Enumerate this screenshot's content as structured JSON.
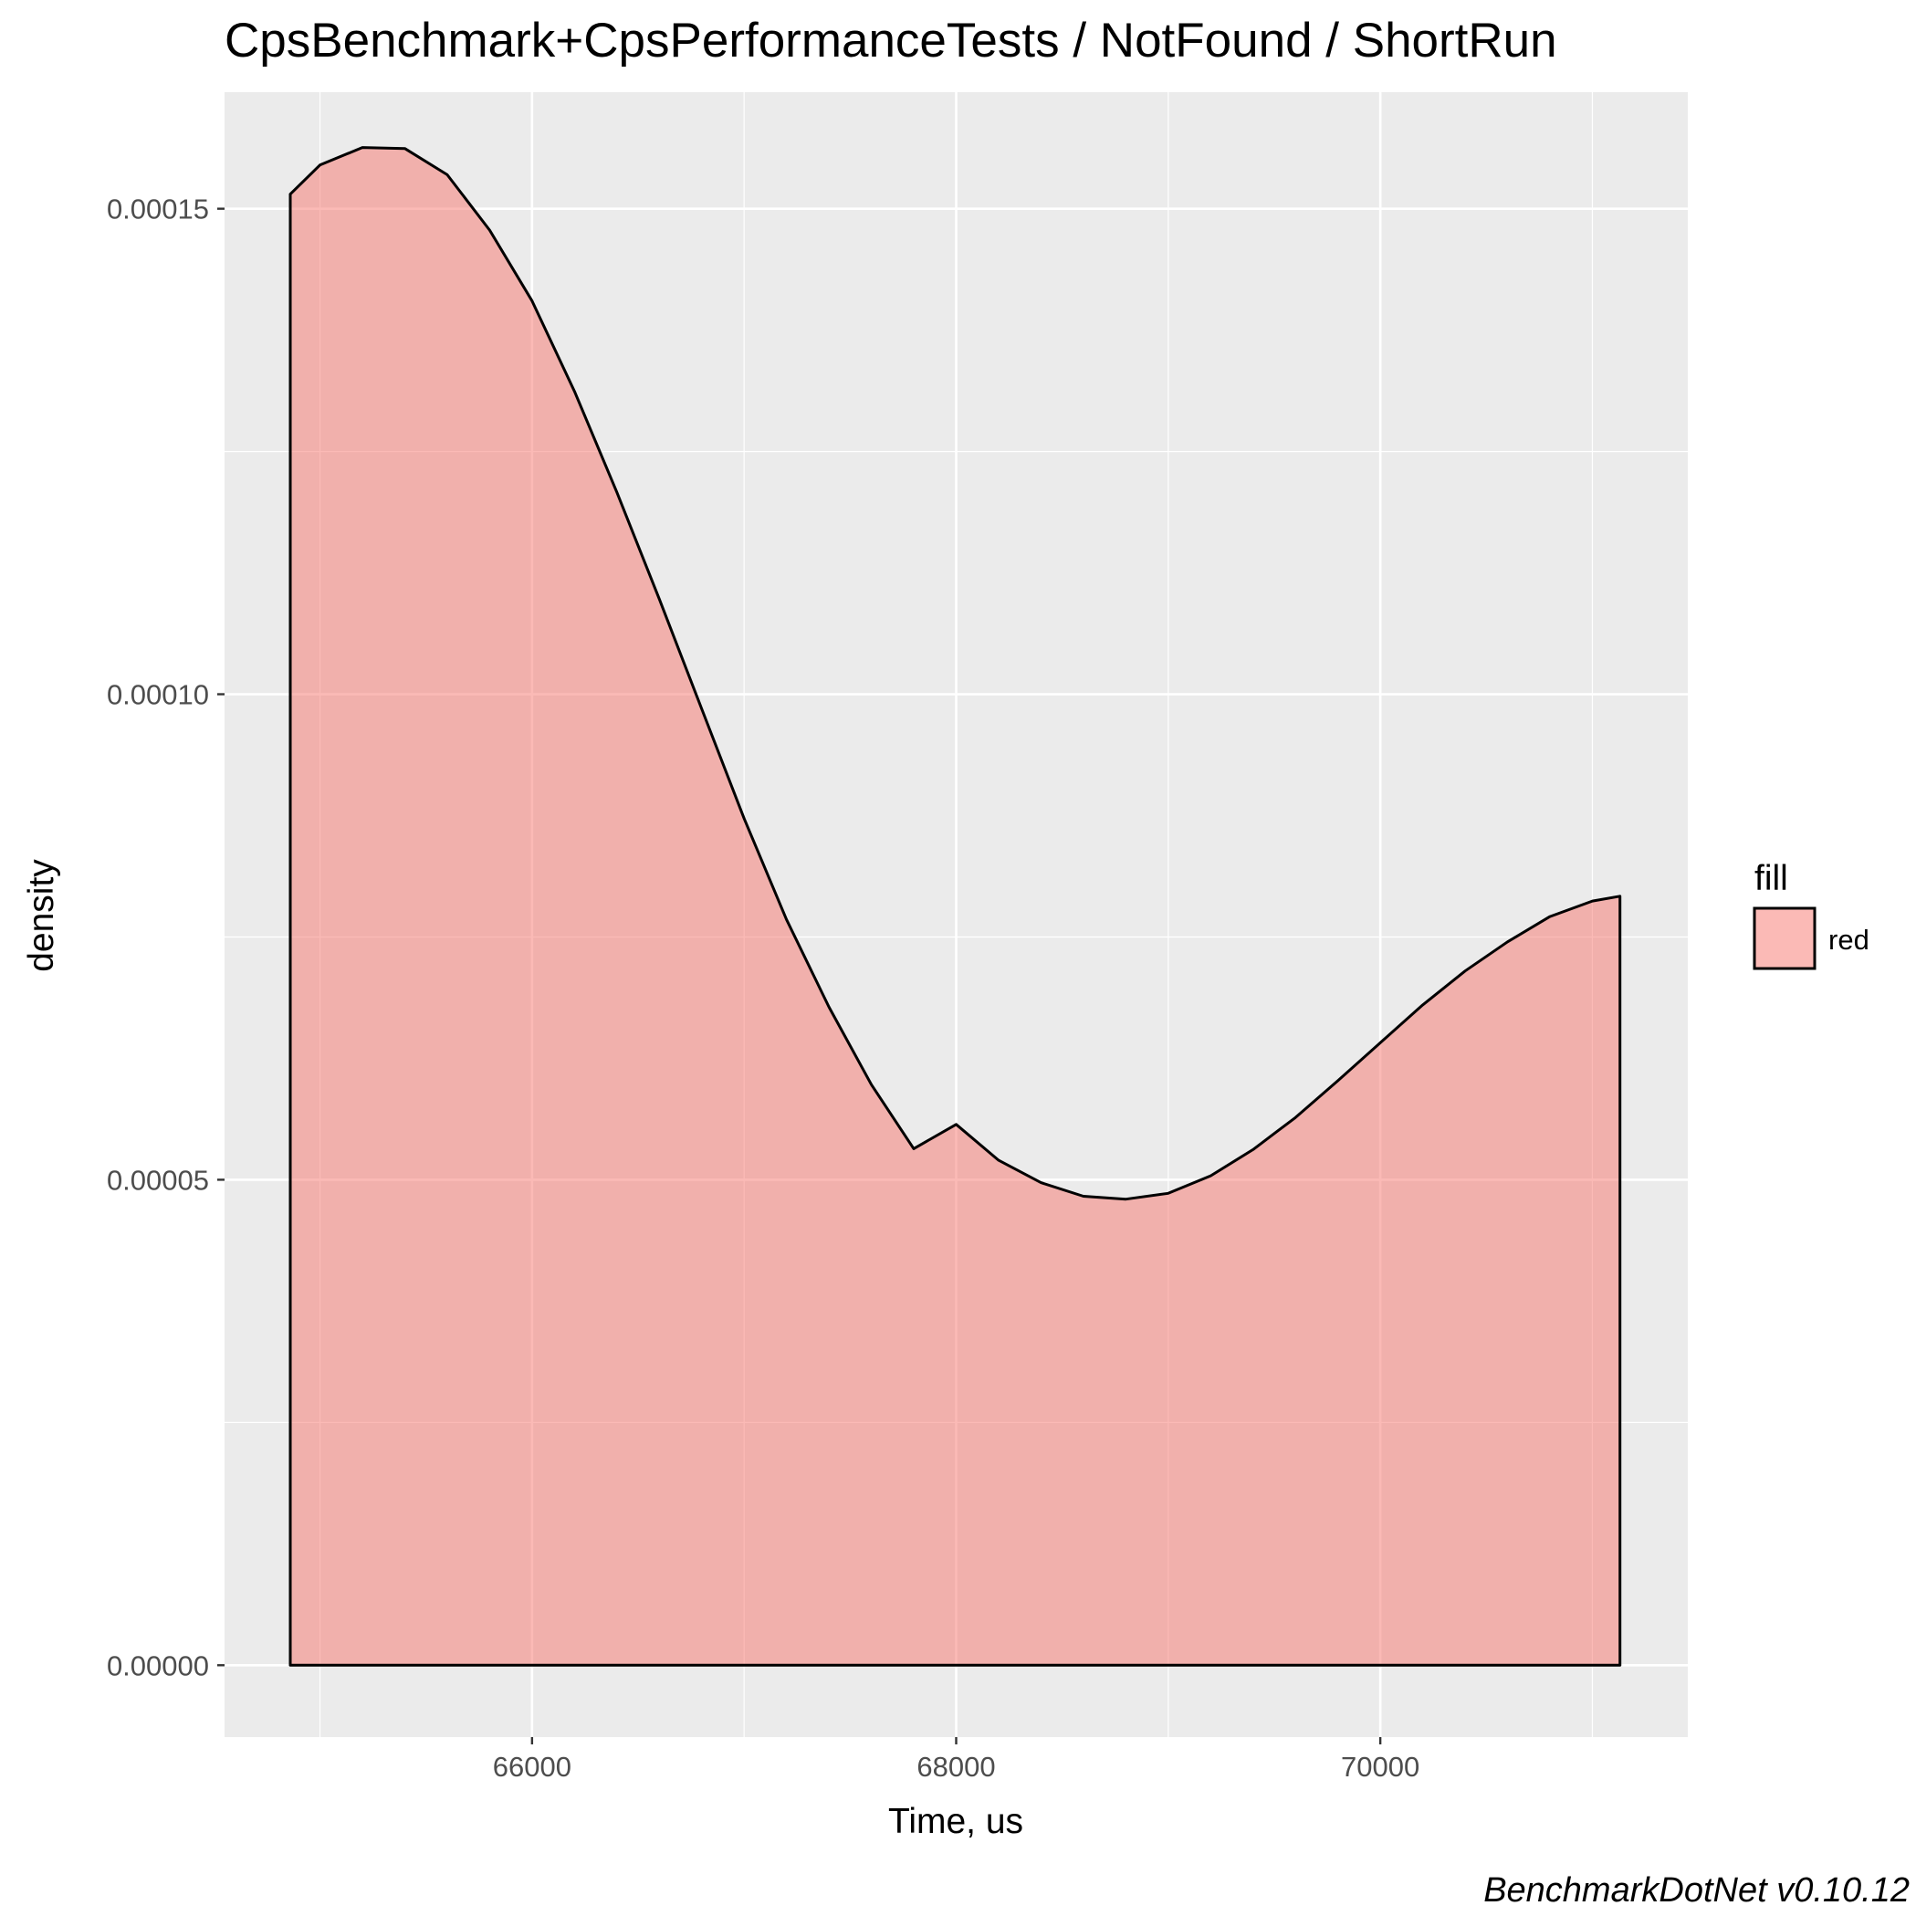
{
  "chart_data": {
    "type": "area",
    "title": "CpsBenchmark+CpsPerformanceTests / NotFound / ShortRun",
    "xlabel": "Time, us",
    "ylabel": "density",
    "caption": "BenchmarkDotNet v0.10.12",
    "xlim": [
      64550,
      71450
    ],
    "ylim": [
      -7.4e-06,
      0.000162
    ],
    "x_ticks": [
      66000,
      68000,
      70000
    ],
    "x_tick_labels": [
      "66000",
      "68000",
      "70000"
    ],
    "x_minor_ticks": [
      65000,
      67000,
      69000,
      71000
    ],
    "y_ticks": [
      0,
      5e-05,
      0.0001,
      0.00015
    ],
    "y_tick_labels": [
      "0.00000",
      "0.00005",
      "0.00010",
      "0.00015"
    ],
    "y_minor_ticks": [
      2.5e-05,
      7.5e-05,
      0.000125
    ],
    "grid": true,
    "legend": {
      "title": "fill",
      "position": "right",
      "entries": [
        {
          "label": "red",
          "color": "#F8766D"
        }
      ]
    },
    "fill_color": "#F8766D",
    "fill_opacity": 0.5,
    "background_color": "#EBEBEB",
    "series": [
      {
        "name": "red",
        "x": [
          64860,
          65000,
          65200,
          65400,
          65600,
          65800,
          66000,
          66200,
          66400,
          66600,
          66800,
          67000,
          67200,
          67400,
          67600,
          67800,
          68000,
          68200,
          68400,
          68600,
          68800,
          69000,
          69200,
          69400,
          69600,
          69800,
          70000,
          70200,
          70400,
          70600,
          70800,
          71000,
          71130
        ],
        "y": [
          0.0001515,
          0.0001545,
          0.0001563,
          0.0001562,
          0.0001535,
          0.0001478,
          0.0001405,
          0.0001312,
          0.0001208,
          0.0001098,
          9.85e-05,
          8.72e-05,
          7.68e-05,
          6.78e-05,
          5.98e-05,
          5.32e-05,
          5.57e-05,
          5.2e-05,
          4.97e-05,
          4.83e-05,
          4.8e-05,
          4.86e-05,
          5.04e-05,
          5.31e-05,
          5.64e-05,
          6.02e-05,
          6.41e-05,
          6.8e-05,
          7.15e-05,
          7.45e-05,
          7.71e-05,
          7.87e-05,
          7.92e-05
        ]
      }
    ]
  }
}
